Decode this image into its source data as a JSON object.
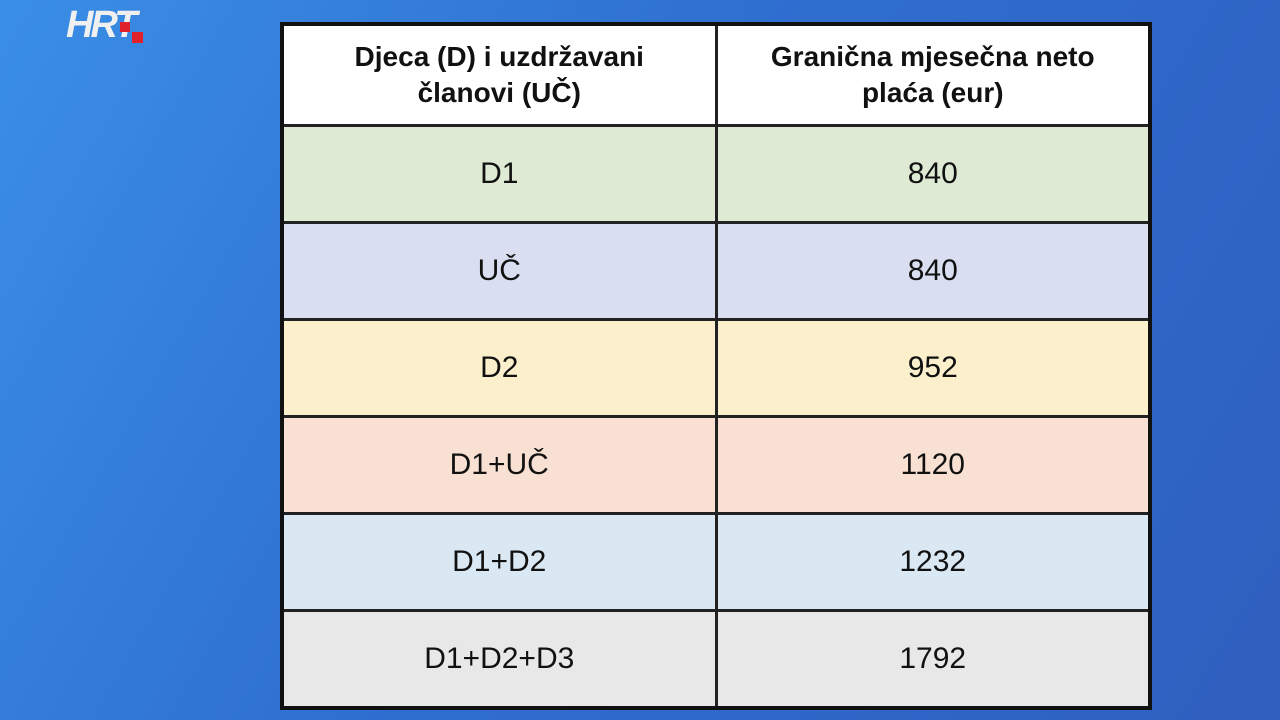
{
  "logo": "HRT",
  "table": {
    "header": [
      "Djeca (D) i uzdržavani članovi (UČ)",
      "Granična mjesečna neto plaća (eur)"
    ],
    "rows": [
      [
        "D1",
        840
      ],
      [
        "UČ",
        840
      ],
      [
        "D2",
        952
      ],
      [
        "D1+UČ",
        1120
      ],
      [
        "D1+D2",
        1232
      ],
      [
        "D1+D2+D3",
        1792
      ]
    ]
  }
}
